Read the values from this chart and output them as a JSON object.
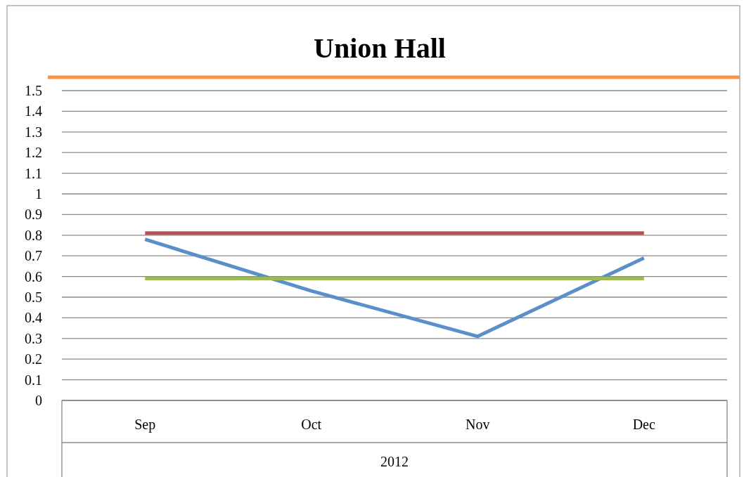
{
  "chart_data": {
    "type": "line",
    "title": "Union Hall",
    "categories": [
      "Sep",
      "Oct",
      "Nov",
      "Dec"
    ],
    "xlabel": "2012",
    "series": [
      {
        "color": "#5b8fc9",
        "values": [
          0.78,
          0.53,
          0.31,
          0.69
        ]
      },
      {
        "color": "#c0504d",
        "values": [
          0.81,
          0.81,
          0.81,
          0.81
        ]
      },
      {
        "color": "#9bbb59",
        "values": [
          0.59,
          0.59,
          0.59,
          0.59
        ]
      }
    ],
    "ylim": [
      0,
      1.5
    ],
    "yticks": [
      0,
      0.1,
      0.2,
      0.3,
      0.4,
      0.5,
      0.6,
      0.7,
      0.8,
      0.9,
      1,
      1.1,
      1.2,
      1.3,
      1.4,
      1.5
    ],
    "grid": "y",
    "marker": "none",
    "line_style": "solid"
  }
}
